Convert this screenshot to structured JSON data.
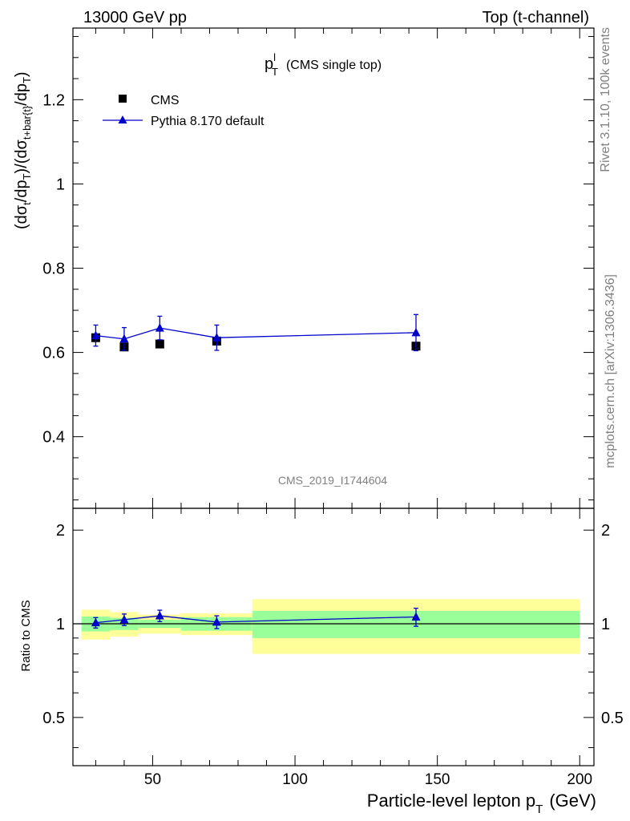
{
  "header": {
    "left": "13000 GeV pp",
    "right": "Top (t-channel)"
  },
  "side_notes": {
    "rivet": "Rivet 3.1.10,  100k events",
    "mcplots": "mcplots.cern.ch [arXiv:1306.3436]"
  },
  "analysis_id": "CMS_2019_I1744604",
  "chart_data": {
    "type": "scatter",
    "title": "p",
    "title_sup": "l",
    "title_sub": "T",
    "title_note": "(CMS single top)",
    "ylabel": "(dσt/dpT)/(dσt+bar{t}/dpT)",
    "xlabel": "Particle-level lepton p",
    "xlabel_sub": "T",
    "xlabel_unit": "(GeV)",
    "xlim": [
      22,
      205
    ],
    "ylim": [
      0.23,
      1.37
    ],
    "x_ticks": [
      50,
      100,
      150,
      200
    ],
    "y_ticks": [
      0.4,
      0.6,
      0.8,
      1.0,
      1.2
    ],
    "y_tick_labels": [
      "0.4",
      "0.6",
      "0.8",
      "1",
      "1.2"
    ],
    "legend_position": "top-left",
    "series": [
      {
        "name": "CMS",
        "color": "#000000",
        "marker": "square",
        "x": [
          30,
          40,
          52.5,
          72.5,
          142.5
        ],
        "y": [
          0.635,
          0.613,
          0.62,
          0.627,
          0.615
        ],
        "bins": [
          [
            25,
            35
          ],
          [
            35,
            45
          ],
          [
            45,
            60
          ],
          [
            60,
            85
          ],
          [
            85,
            200
          ]
        ],
        "stat_rel": [
          0.055,
          0.045,
          0.03,
          0.05,
          0.1
        ],
        "total_rel": [
          0.11,
          0.09,
          0.07,
          0.08,
          0.2
        ]
      },
      {
        "name": "Pythia 8.170 default",
        "color": "#0000cc",
        "marker": "triangle",
        "x": [
          30,
          40,
          52.5,
          72.5,
          142.5
        ],
        "y": [
          0.64,
          0.632,
          0.658,
          0.635,
          0.647
        ],
        "yerr": [
          0.025,
          0.027,
          0.028,
          0.03,
          0.043
        ]
      }
    ],
    "ratio": {
      "ylabel": "Ratio to CMS",
      "ylim": [
        0.35,
        2.35
      ],
      "ticks": [
        0.5,
        1,
        2
      ],
      "tick_labels": [
        "0.5",
        "1",
        "2"
      ],
      "band_colors": {
        "stat": "#99ff99",
        "total": "#ffff99"
      },
      "points": [
        1.008,
        1.031,
        1.061,
        1.013,
        1.052
      ],
      "errors": [
        0.039,
        0.044,
        0.045,
        0.048,
        0.07
      ]
    }
  }
}
